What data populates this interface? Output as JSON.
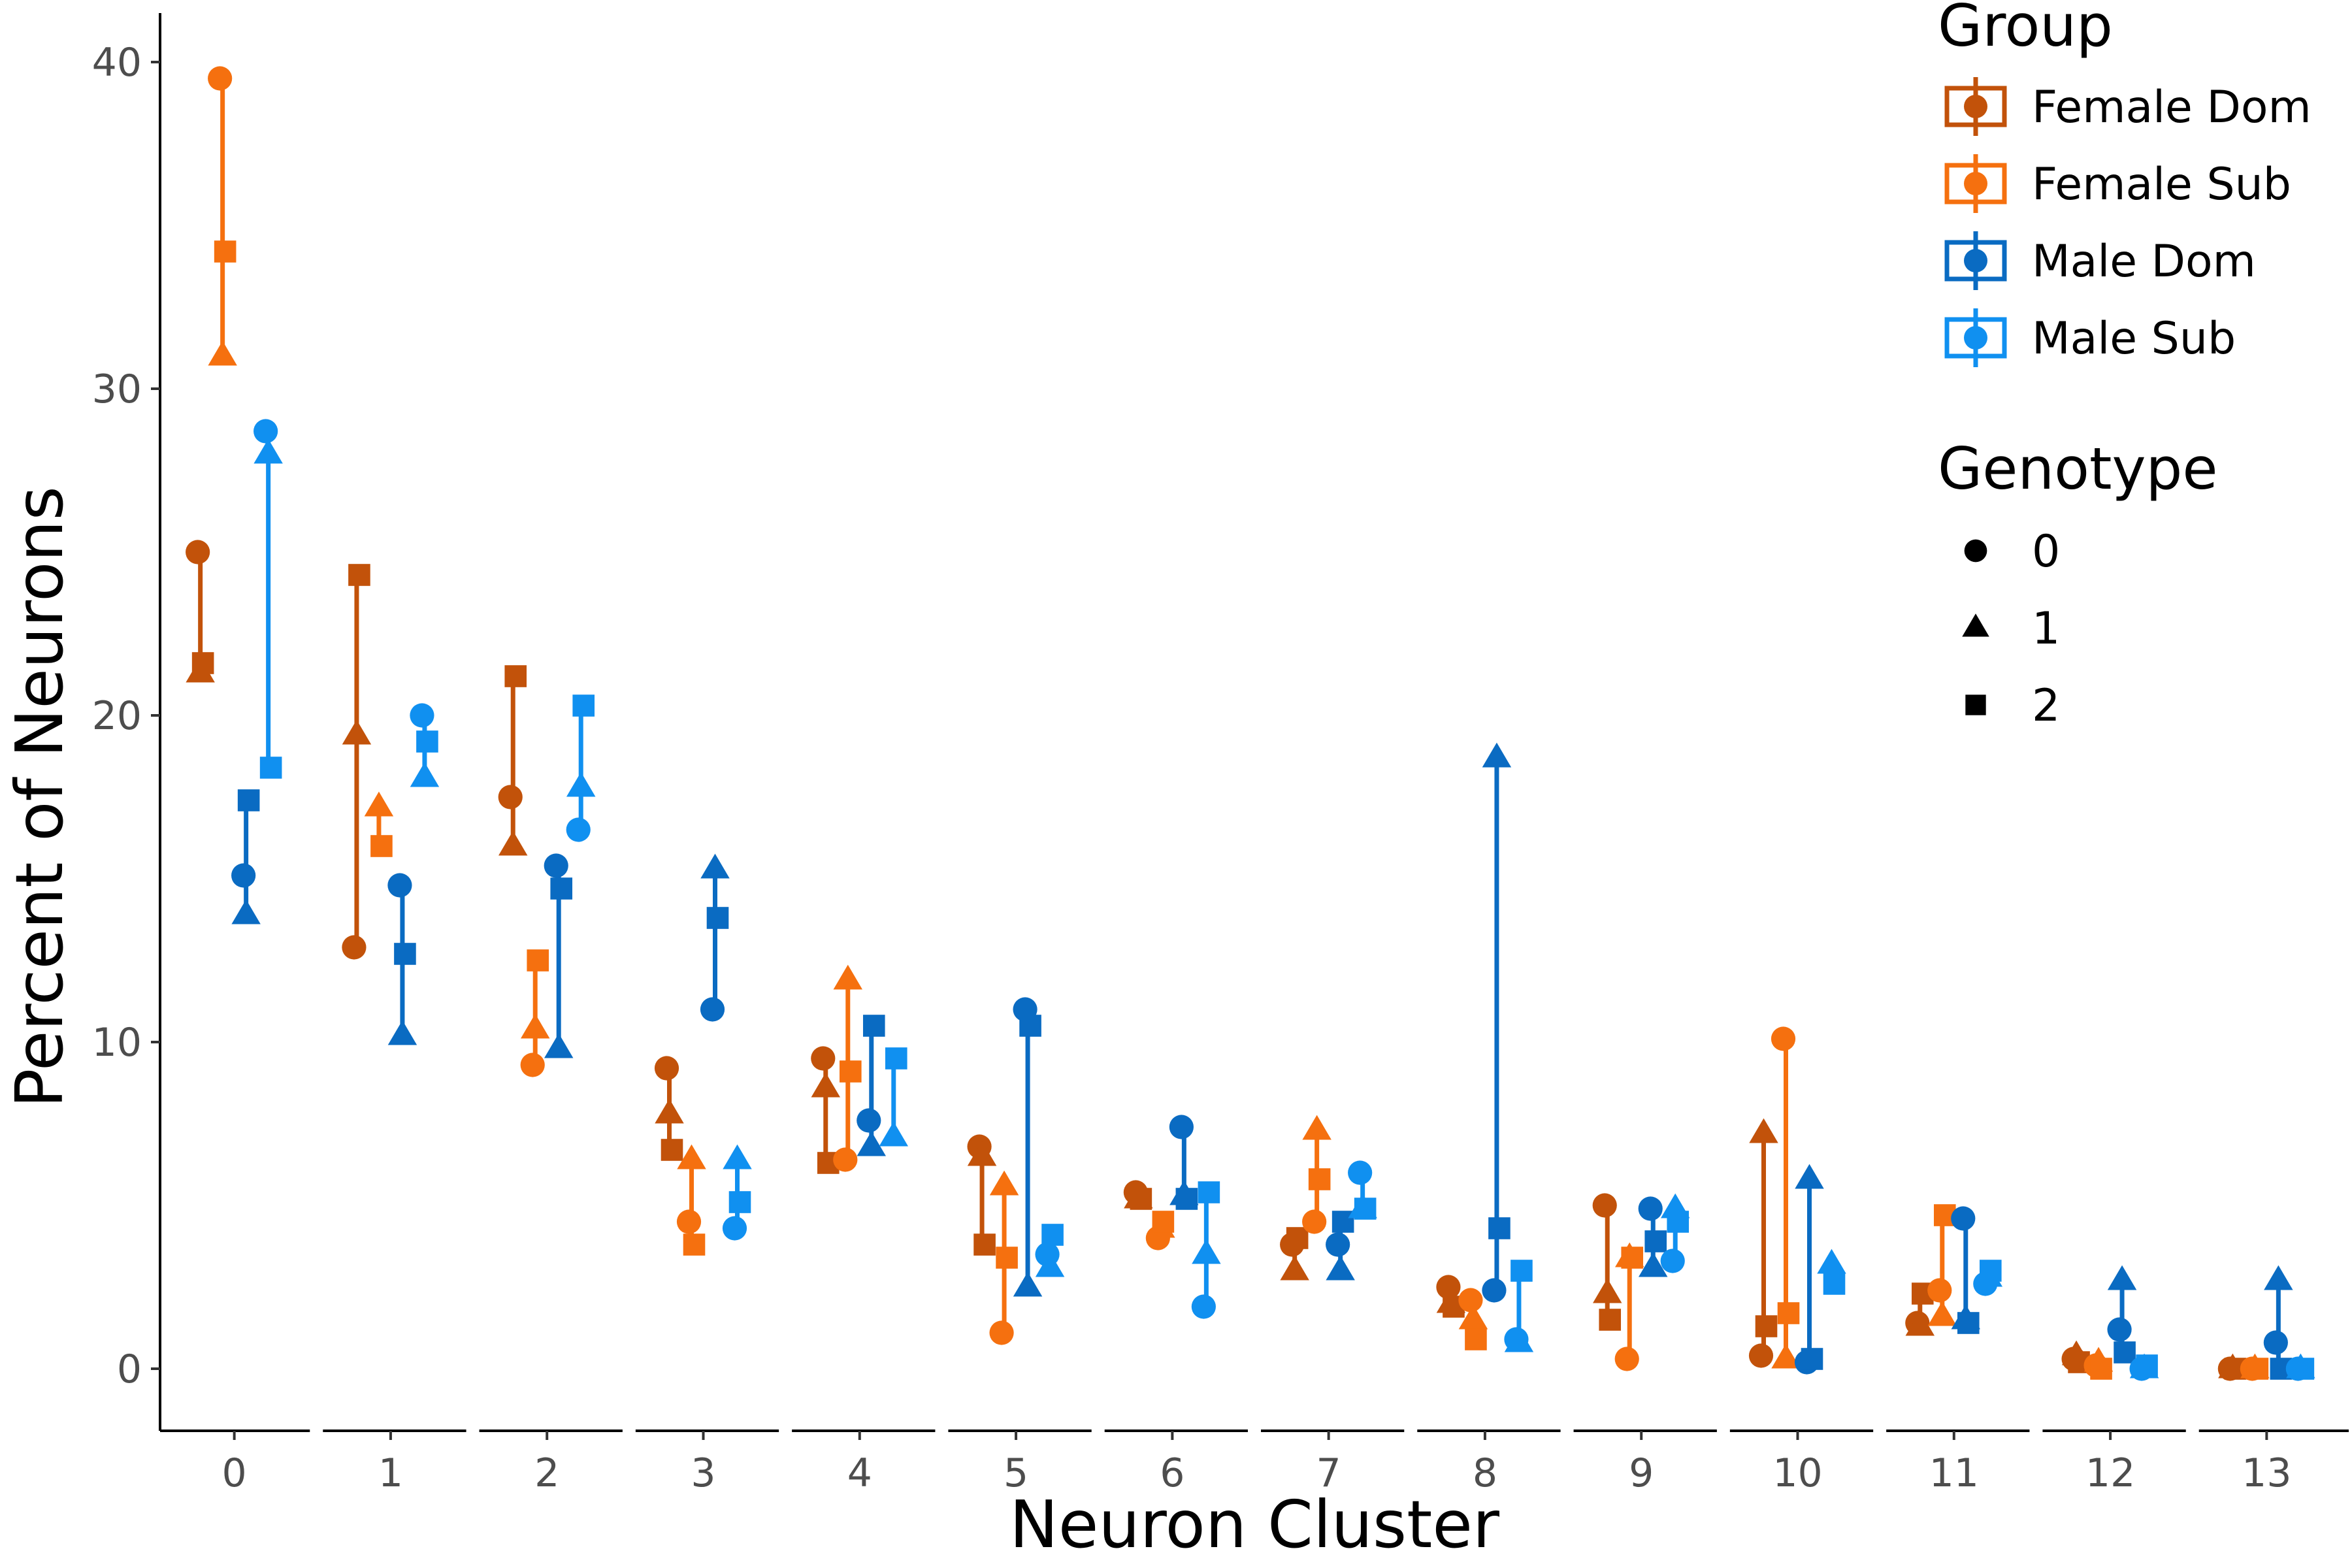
{
  "chart_data": {
    "type": "scatter",
    "xlabel": "Neuron Cluster",
    "ylabel": "Percent of Neurons",
    "ylim": [
      -1.9,
      41.5
    ],
    "yticks": [
      0,
      10,
      20,
      30,
      40
    ],
    "categories": [
      "0",
      "1",
      "2",
      "3",
      "4",
      "5",
      "6",
      "7",
      "8",
      "9",
      "10",
      "11",
      "12",
      "13"
    ],
    "legend": {
      "group_title": "Group",
      "genotype_title": "Genotype",
      "placement": "top-right"
    },
    "groups": [
      {
        "name": "Female Dom",
        "color": "#C2520A"
      },
      {
        "name": "Female Sub",
        "color": "#F5700F"
      },
      {
        "name": "Male Dom",
        "color": "#0A6BC2"
      },
      {
        "name": "Male Sub",
        "color": "#1090F0"
      }
    ],
    "genotypes": [
      {
        "name": "0",
        "shape": "circle"
      },
      {
        "name": "1",
        "shape": "triangle"
      },
      {
        "name": "2",
        "shape": "square"
      }
    ],
    "series": [
      {
        "name": "Female Dom",
        "values": [
          [
            25.0,
            21.3,
            21.6
          ],
          [
            12.9,
            19.4,
            24.3
          ],
          [
            17.5,
            16.0,
            21.2
          ],
          [
            9.2,
            7.8,
            6.7
          ],
          [
            9.5,
            8.6,
            6.3
          ],
          [
            6.8,
            6.5,
            3.8
          ],
          [
            5.4,
            5.2,
            5.2
          ],
          [
            3.8,
            3.0,
            4.0
          ],
          [
            2.5,
            2.0,
            1.9
          ],
          [
            5.0,
            2.3,
            1.5
          ],
          [
            0.4,
            7.2,
            1.3
          ],
          [
            1.4,
            1.3,
            2.3
          ],
          [
            0.3,
            0.4,
            0.2
          ],
          [
            0.0,
            0.0,
            0.0
          ]
        ]
      },
      {
        "name": "Female Sub",
        "values": [
          [
            39.5,
            31.0,
            34.2
          ],
          [
            null,
            17.2,
            16.0
          ],
          [
            9.3,
            10.4,
            12.5
          ],
          [
            4.5,
            6.4,
            3.8
          ],
          [
            6.4,
            11.9,
            9.1
          ],
          [
            1.1,
            5.6,
            3.4
          ],
          [
            4.0,
            4.3,
            4.5
          ],
          [
            4.5,
            7.3,
            5.8
          ],
          [
            2.1,
            1.5,
            0.9
          ],
          [
            0.3,
            3.4,
            3.4
          ],
          [
            10.1,
            0.3,
            1.7
          ],
          [
            2.4,
            1.6,
            4.7
          ],
          [
            0.1,
            0.2,
            0.0
          ],
          [
            0.0,
            0.0,
            0.0
          ]
        ]
      },
      {
        "name": "Male Dom",
        "values": [
          [
            15.1,
            13.9,
            17.4
          ],
          [
            14.8,
            10.2,
            12.7
          ],
          [
            15.4,
            9.8,
            14.7
          ],
          [
            11.0,
            15.3,
            13.8
          ],
          [
            7.6,
            6.8,
            10.5
          ],
          [
            11.0,
            2.5,
            10.5
          ],
          [
            7.4,
            5.3,
            5.2
          ],
          [
            3.8,
            3.0,
            4.5
          ],
          [
            2.4,
            18.7,
            4.3
          ],
          [
            4.9,
            3.1,
            3.9
          ],
          [
            0.2,
            5.8,
            0.3
          ],
          [
            4.6,
            1.5,
            1.4
          ],
          [
            1.2,
            2.7,
            0.5
          ],
          [
            0.8,
            2.7,
            0.0
          ]
        ]
      },
      {
        "name": "Male Sub",
        "values": [
          [
            28.7,
            28.0,
            18.4
          ],
          [
            20.0,
            18.1,
            19.2
          ],
          [
            16.5,
            17.8,
            20.3
          ],
          [
            4.3,
            6.4,
            5.1
          ],
          [
            null,
            7.1,
            9.5
          ],
          [
            3.5,
            3.1,
            4.1
          ],
          [
            1.9,
            3.5,
            5.4
          ],
          [
            6.0,
            4.9,
            4.9
          ],
          [
            0.9,
            0.8,
            3.0
          ],
          [
            3.3,
            4.9,
            4.5
          ],
          [
            null,
            3.2,
            2.6
          ],
          [
            2.6,
            2.8,
            3.0
          ],
          [
            0.0,
            0.0,
            0.1
          ],
          [
            0.0,
            0.0,
            0.0
          ]
        ]
      }
    ]
  }
}
